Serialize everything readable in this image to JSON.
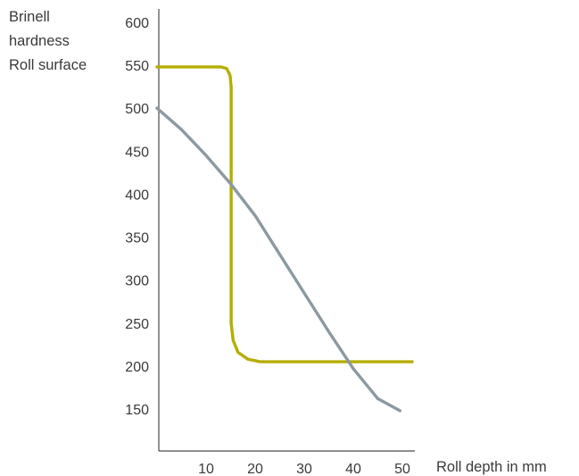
{
  "chart_data": {
    "type": "line",
    "ylabel_lines": [
      "Brinell",
      "hardness",
      "Roll surface"
    ],
    "xlabel": "Roll depth in mm",
    "x_ticks": [
      "10",
      "20",
      "30",
      "40",
      "50"
    ],
    "y_ticks": [
      "600",
      "550",
      "500",
      "450",
      "400",
      "350",
      "300",
      "250",
      "200",
      "150"
    ],
    "xlim": [
      0,
      52
    ],
    "ylim": [
      100,
      610
    ],
    "grid": false,
    "legend": "none",
    "series": [
      {
        "color": "#b5ad00",
        "points": [
          [
            0,
            548
          ],
          [
            13,
            548
          ],
          [
            14.2,
            546
          ],
          [
            14.9,
            538
          ],
          [
            15.1,
            525
          ],
          [
            15.1,
            250
          ],
          [
            15.5,
            230
          ],
          [
            16.5,
            216
          ],
          [
            18.5,
            208
          ],
          [
            21,
            205
          ],
          [
            25,
            205
          ],
          [
            52,
            205
          ]
        ]
      },
      {
        "color": "#8c99a0",
        "points": [
          [
            0,
            500
          ],
          [
            5,
            475
          ],
          [
            10,
            445
          ],
          [
            15,
            412
          ],
          [
            20,
            375
          ],
          [
            25,
            330
          ],
          [
            30,
            285
          ],
          [
            35,
            240
          ],
          [
            40,
            197
          ],
          [
            45,
            162
          ],
          [
            49.5,
            148
          ]
        ]
      }
    ]
  }
}
